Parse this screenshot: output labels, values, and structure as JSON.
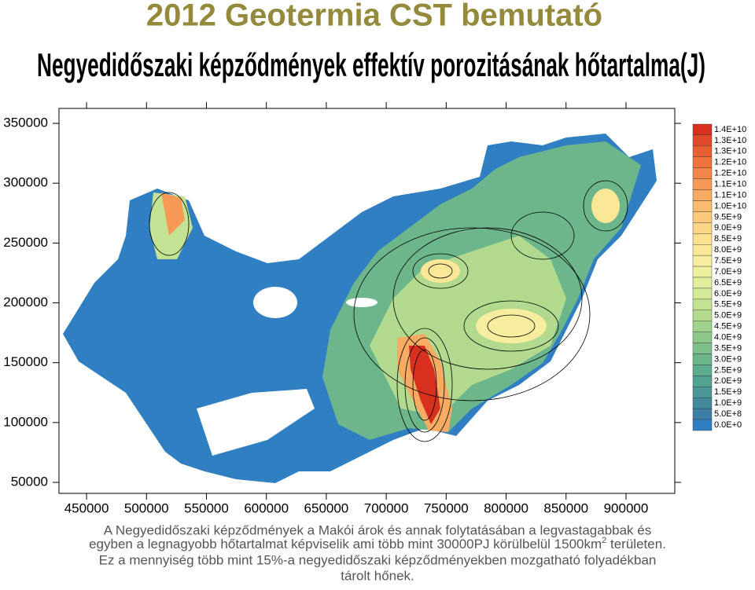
{
  "title": "2012 Geotermia CST bemutató",
  "map": {
    "title": "Negyedidőszaki képződmények effektív porozitásának hőtartalma(J)",
    "xlim": [
      427000,
      940700
    ],
    "ylim": [
      40800,
      362500
    ],
    "xticks": [
      450000,
      500000,
      550000,
      600000,
      650000,
      700000,
      750000,
      800000,
      850000,
      900000
    ],
    "yticks": [
      50000,
      100000,
      150000,
      200000,
      250000,
      300000,
      350000
    ],
    "legend": [
      {
        "label": "1.4E+10",
        "color": "#d7301f"
      },
      {
        "label": "1.3E+10",
        "color": "#e04a2a"
      },
      {
        "label": "1.3E+10",
        "color": "#e85f33"
      },
      {
        "label": "1.2E+10",
        "color": "#ef7440"
      },
      {
        "label": "1.2E+10",
        "color": "#f3874a"
      },
      {
        "label": "1.1E+10",
        "color": "#f69a56"
      },
      {
        "label": "1.1E+10",
        "color": "#f8ab62"
      },
      {
        "label": "1.0E+10",
        "color": "#f9bb6e"
      },
      {
        "label": "9.5E+9",
        "color": "#fac97a"
      },
      {
        "label": "9.0E+9",
        "color": "#fbd686"
      },
      {
        "label": "8.5E+9",
        "color": "#fbe090"
      },
      {
        "label": "8.0E+9",
        "color": "#fae898"
      },
      {
        "label": "7.5E+9",
        "color": "#f6ee9e"
      },
      {
        "label": "7.0E+9",
        "color": "#eef0a0"
      },
      {
        "label": "6.5E+9",
        "color": "#e2ee9c"
      },
      {
        "label": "6.0E+9",
        "color": "#d3e997"
      },
      {
        "label": "5.5E+9",
        "color": "#c3e293"
      },
      {
        "label": "5.0E+9",
        "color": "#b1da8f"
      },
      {
        "label": "4.5E+9",
        "color": "#9fd28b"
      },
      {
        "label": "4.0E+9",
        "color": "#8ec98a"
      },
      {
        "label": "3.5E+9",
        "color": "#7dc08a"
      },
      {
        "label": "3.0E+9",
        "color": "#6db68b"
      },
      {
        "label": "2.5E+9",
        "color": "#5eac8e"
      },
      {
        "label": "2.0E+9",
        "color": "#52a292"
      },
      {
        "label": "1.5E+9",
        "color": "#4a9696"
      },
      {
        "label": "1.0E+9",
        "color": "#438a9c"
      },
      {
        "label": "5.0E+8",
        "color": "#3d7ea6"
      },
      {
        "label": "0.0E+0",
        "color": "#2f7fc2"
      }
    ]
  },
  "caption": {
    "line1": "A Negyedidőszaki képződmények a Makói árok és annak folytatásában a legvastagabbak és",
    "line2_a": "egyben a legnagyobb hőtartalmat képviselik ami több mint 30000PJ körülbelül 1500km",
    "line2_sup": "2",
    "line2_b": " területen.",
    "line3": "Ez a mennyiség több mint  15%-a negyedidőszaki képződményekben  mozgatható folyadékban",
    "line4": "tárolt hőnek."
  }
}
